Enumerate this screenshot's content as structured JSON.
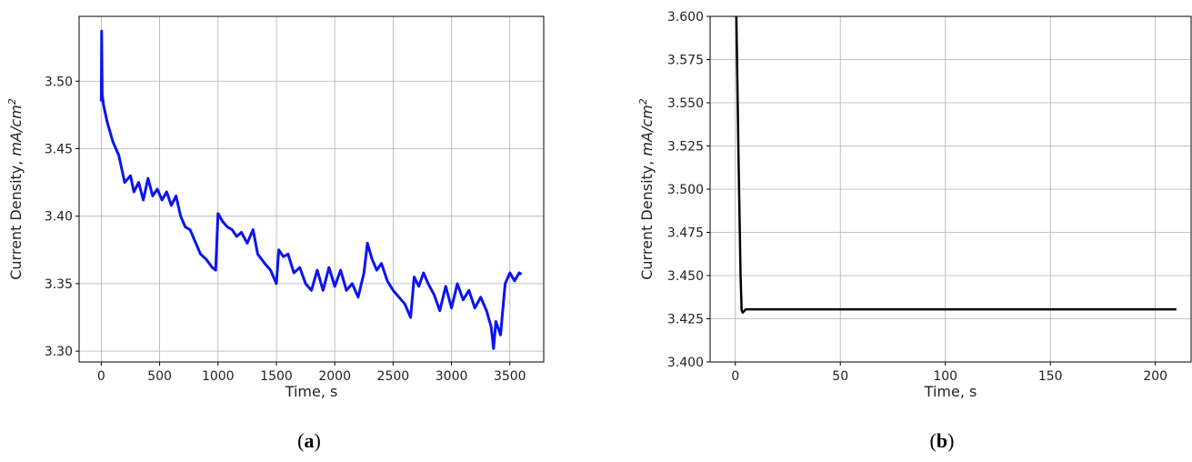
{
  "chart_data": [
    {
      "type": "line",
      "caption_paren_open": "(",
      "caption_letter": "a",
      "caption_paren_close": ")",
      "xlabel": "Time, s",
      "ylabel_prefix": "Current Density, ",
      "ylabel_unit": "mA/cm",
      "ylabel_exp": "2",
      "xlim": [
        -190,
        3790
      ],
      "ylim": [
        3.292,
        3.548
      ],
      "xticks": [
        0,
        500,
        1000,
        1500,
        2000,
        2500,
        3000,
        3500
      ],
      "xtick_labels": [
        "0",
        "500",
        "1000",
        "1500",
        "2000",
        "2500",
        "3000",
        "3500"
      ],
      "yticks": [
        3.3,
        3.35,
        3.4,
        3.45,
        3.5
      ],
      "ytick_labels": [
        "3.30",
        "3.35",
        "3.40",
        "3.45",
        "3.50"
      ],
      "grid": true,
      "series": [
        {
          "color": "#0a14f0",
          "x": [
            0,
            3,
            8,
            20,
            50,
            100,
            150,
            200,
            250,
            280,
            320,
            360,
            400,
            440,
            480,
            520,
            560,
            600,
            640,
            680,
            720,
            760,
            800,
            850,
            900,
            950,
            980,
            1000,
            1040,
            1080,
            1120,
            1160,
            1200,
            1250,
            1300,
            1340,
            1400,
            1450,
            1500,
            1520,
            1560,
            1600,
            1650,
            1700,
            1750,
            1800,
            1850,
            1900,
            1950,
            2000,
            2050,
            2100,
            2150,
            2200,
            2250,
            2280,
            2320,
            2360,
            2400,
            2450,
            2500,
            2550,
            2600,
            2650,
            2680,
            2720,
            2760,
            2800,
            2850,
            2900,
            2950,
            3000,
            3050,
            3100,
            3150,
            3200,
            3250,
            3300,
            3340,
            3360,
            3380,
            3420,
            3460,
            3500,
            3540,
            3580,
            3600
          ],
          "y": [
            3.485,
            3.537,
            3.49,
            3.482,
            3.47,
            3.455,
            3.445,
            3.425,
            3.43,
            3.418,
            3.425,
            3.412,
            3.428,
            3.415,
            3.42,
            3.412,
            3.418,
            3.408,
            3.415,
            3.4,
            3.392,
            3.39,
            3.382,
            3.372,
            3.368,
            3.362,
            3.36,
            3.402,
            3.396,
            3.392,
            3.39,
            3.385,
            3.388,
            3.38,
            3.39,
            3.372,
            3.365,
            3.36,
            3.35,
            3.375,
            3.37,
            3.372,
            3.358,
            3.362,
            3.35,
            3.345,
            3.36,
            3.345,
            3.362,
            3.348,
            3.36,
            3.345,
            3.35,
            3.34,
            3.358,
            3.38,
            3.368,
            3.36,
            3.365,
            3.352,
            3.345,
            3.34,
            3.335,
            3.325,
            3.355,
            3.348,
            3.358,
            3.35,
            3.342,
            3.33,
            3.348,
            3.332,
            3.35,
            3.338,
            3.345,
            3.332,
            3.34,
            3.33,
            3.318,
            3.302,
            3.322,
            3.312,
            3.35,
            3.358,
            3.352,
            3.358,
            3.357
          ]
        }
      ]
    },
    {
      "type": "line",
      "caption_paren_open": "(",
      "caption_letter": "b",
      "caption_paren_close": ")",
      "xlabel": "Time, s",
      "ylabel_prefix": "Current Density, ",
      "ylabel_unit": "mA/cm",
      "ylabel_exp": "2",
      "xlim": [
        -12,
        217
      ],
      "ylim": [
        3.4,
        3.6
      ],
      "xticks": [
        0,
        50,
        100,
        150,
        200
      ],
      "xtick_labels": [
        "0",
        "50",
        "100",
        "150",
        "200"
      ],
      "yticks": [
        3.4,
        3.425,
        3.45,
        3.475,
        3.5,
        3.525,
        3.55,
        3.575,
        3.6
      ],
      "ytick_labels": [
        "3.400",
        "3.425",
        "3.450",
        "3.475",
        "3.500",
        "3.525",
        "3.550",
        "3.575",
        "3.600"
      ],
      "grid": true,
      "series": [
        {
          "color": "#000000",
          "x": [
            0.5,
            1.5,
            2.5,
            3.0,
            3.5,
            5,
            20,
            60,
            100,
            150,
            210
          ],
          "y": [
            3.6,
            3.52,
            3.45,
            3.43,
            3.4285,
            3.4305,
            3.4305,
            3.4305,
            3.4305,
            3.4305,
            3.4305
          ]
        }
      ]
    }
  ]
}
